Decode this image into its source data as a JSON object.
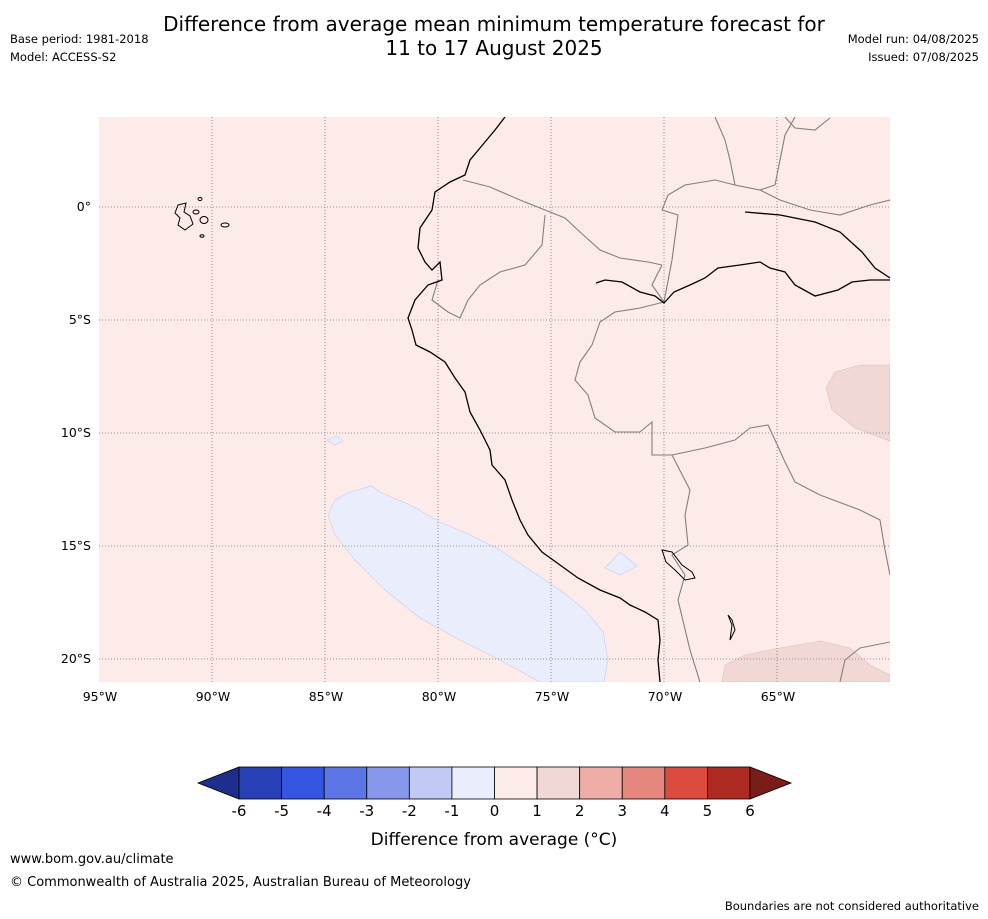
{
  "title_line1": "Difference from average mean minimum temperature forecast for",
  "title_line2": "11 to 17 August 2025",
  "base_period": "Base period: 1981-2018",
  "model": "Model: ACCESS-S2",
  "model_run": "Model run: 04/08/2025",
  "issued": "Issued: 07/08/2025",
  "map": {
    "lat_labels": [
      "0°",
      "5°S",
      "10°S",
      "15°S",
      "20°S"
    ],
    "lon_labels": [
      "95°W",
      "90°W",
      "85°W",
      "80°W",
      "75°W",
      "70°W",
      "65°W"
    ],
    "background_color": "#fcebe9"
  },
  "legend": {
    "ticks": [
      "-6",
      "-5",
      "-4",
      "-3",
      "-2",
      "-1",
      "0",
      "1",
      "2",
      "3",
      "4",
      "5",
      "6"
    ],
    "colors": [
      "#1f2d8c",
      "#2740b5",
      "#3456e0",
      "#5d76e6",
      "#8797ec",
      "#c2c9f5",
      "#e9edfc",
      "#fcebe9",
      "#f2d8d5",
      "#efada8",
      "#e6877f",
      "#db4b40",
      "#ad2a23",
      "#7a1d1a"
    ],
    "label": "Difference from average (°C)"
  },
  "footer": {
    "url": "www.bom.gov.au/climate",
    "copyright": "© Commonwealth of Australia 2025, Australian Bureau of Meteorology",
    "note": "Boundaries are not considered authoritative"
  }
}
